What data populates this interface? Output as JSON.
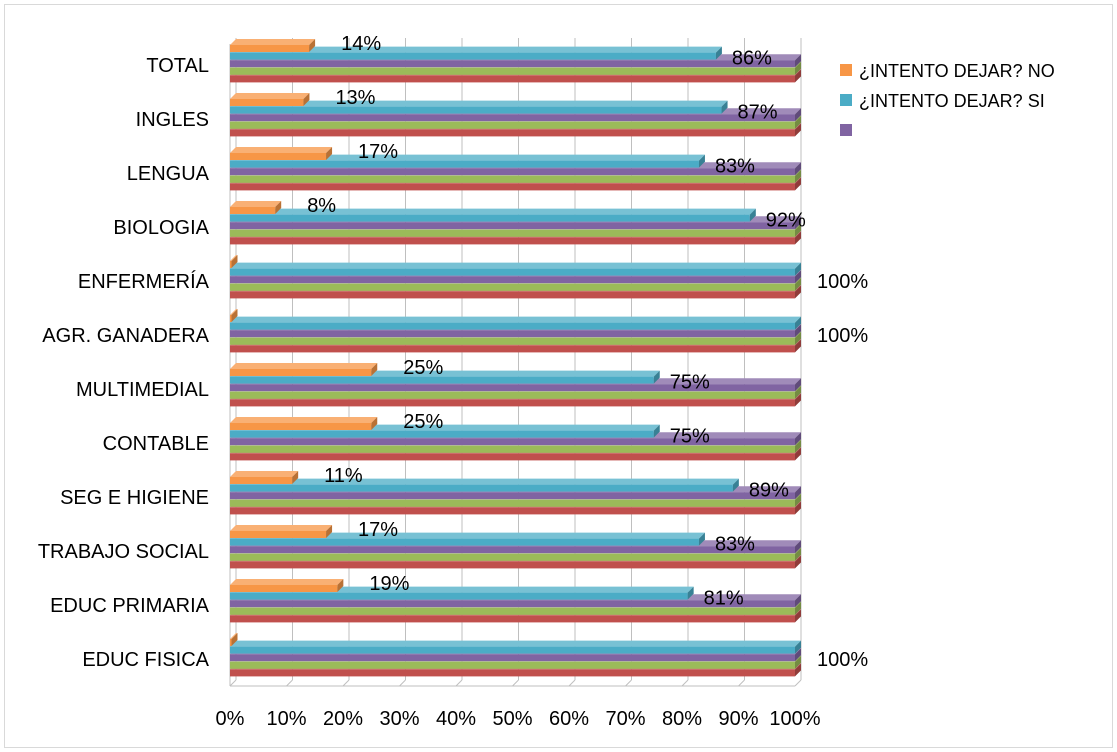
{
  "chart_data": {
    "type": "bar",
    "orientation": "horizontal",
    "stacked": "percent",
    "categories": [
      "TOTAL",
      "INGLES",
      "LENGUA",
      "BIOLOGIA",
      "ENFERMERÍA",
      "AGR. GANADERA",
      "MULTIMEDIAL",
      "CONTABLE",
      "SEG E HIGIENE",
      "TRABAJO SOCIAL",
      "EDUC PRIMARIA",
      "EDUC FISICA"
    ],
    "series": [
      {
        "name": "¿INTENTO DEJAR? NO",
        "color": "#f79646",
        "values": [
          14,
          13,
          17,
          8,
          0,
          0,
          25,
          25,
          11,
          17,
          19,
          0
        ],
        "labels": [
          "14%",
          "13%",
          "17%",
          "8%",
          "",
          "",
          "25%",
          "25%",
          "11%",
          "17%",
          "19%",
          ""
        ]
      },
      {
        "name": "¿INTENTO DEJAR? SI",
        "color": "#4bacc6",
        "values": [
          86,
          87,
          83,
          92,
          100,
          100,
          75,
          75,
          89,
          83,
          81,
          100
        ],
        "labels": [
          "86%",
          "87%",
          "83%",
          "92%",
          "100%",
          "100%",
          "75%",
          "75%",
          "89%",
          "83%",
          "81%",
          "100%"
        ]
      },
      {
        "name": "",
        "color": "#8064a2",
        "values": [
          100,
          100,
          100,
          100,
          100,
          100,
          100,
          100,
          100,
          100,
          100,
          100
        ]
      },
      {
        "color": "#9bbb59",
        "values": [
          100,
          100,
          100,
          100,
          100,
          100,
          100,
          100,
          100,
          100,
          100,
          100
        ]
      },
      {
        "color": "#c0504d",
        "values": [
          100,
          100,
          100,
          100,
          100,
          100,
          100,
          100,
          100,
          100,
          100,
          100
        ]
      }
    ],
    "x_ticks": [
      "0%",
      "10%",
      "20%",
      "30%",
      "40%",
      "50%",
      "60%",
      "70%",
      "80%",
      "90%",
      "100%"
    ],
    "xlim": [
      0,
      100
    ],
    "legend_position": "top-right",
    "grid": true,
    "three_d": true
  }
}
